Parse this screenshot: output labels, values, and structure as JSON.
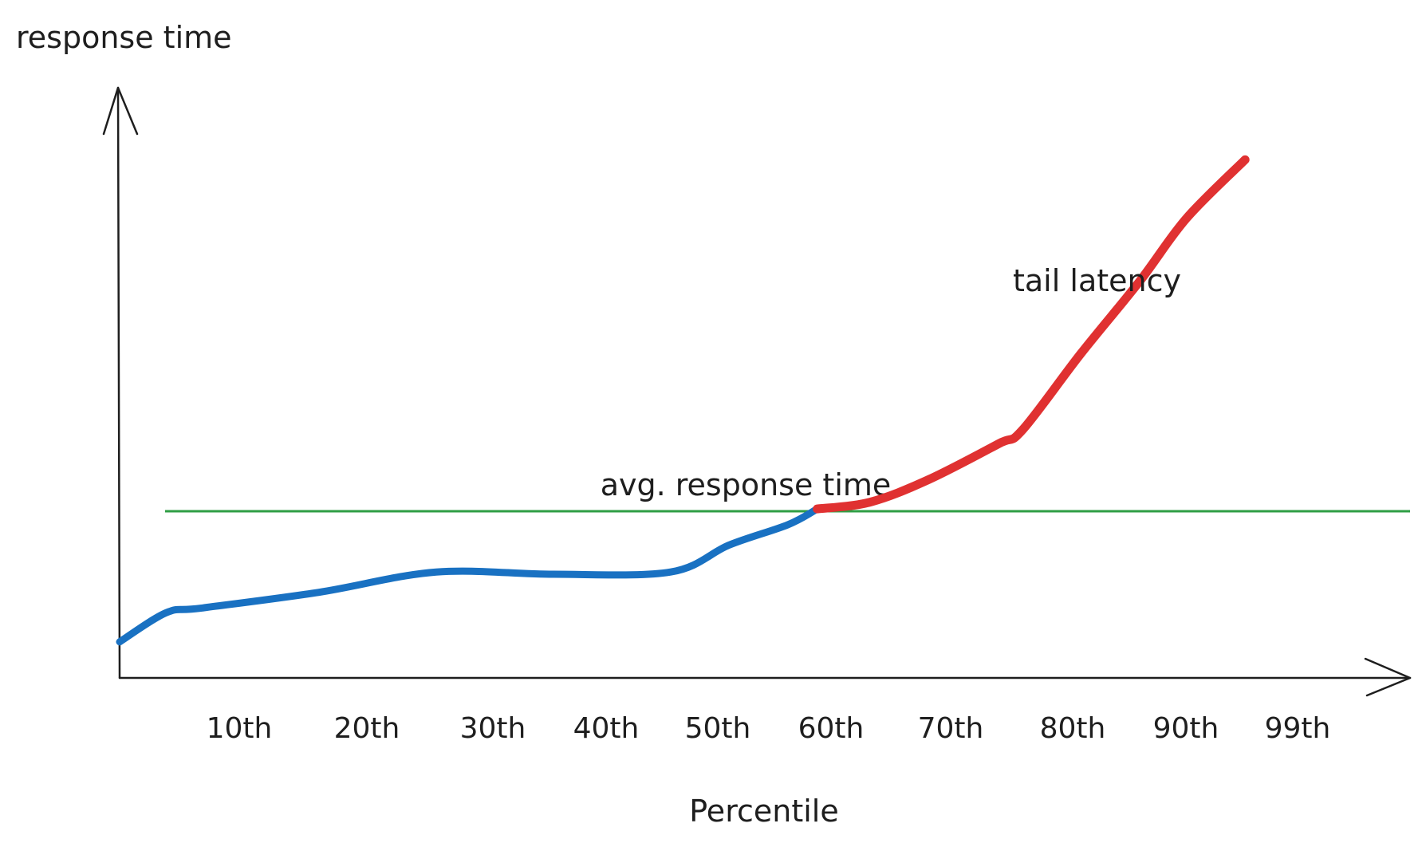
{
  "chart_data": {
    "type": "line",
    "ylabel": "response time",
    "xlabel": "Percentile",
    "categories": [
      "10th",
      "20th",
      "30th",
      "40th",
      "50th",
      "60th",
      "70th",
      "80th",
      "90th",
      "99th"
    ],
    "series": [
      {
        "name": "",
        "color": "#1971c2",
        "x": [
          3,
          7,
          10,
          20,
          30,
          40,
          50,
          55,
          60,
          62.5
        ],
        "y": [
          0.08,
          0.145,
          0.155,
          0.19,
          0.235,
          0.23,
          0.235,
          0.295,
          0.34,
          0.375
        ]
      },
      {
        "name": "tail latency",
        "color": "#e03131",
        "x": [
          62.5,
          67,
          72,
          78,
          80,
          85,
          90,
          94,
          99
        ],
        "y": [
          0.375,
          0.39,
          0.44,
          0.52,
          0.55,
          0.72,
          0.88,
          1.02,
          1.15
        ]
      }
    ],
    "reference_lines": [
      {
        "label": "avg. response time",
        "y": 0.37,
        "color": "#2f9e44"
      }
    ],
    "annotations": [
      {
        "text": "tail latency",
        "color": "#e03131"
      },
      {
        "text": "avg. response time",
        "color": "#2f9e44"
      }
    ],
    "grid": false,
    "legend": "none"
  }
}
